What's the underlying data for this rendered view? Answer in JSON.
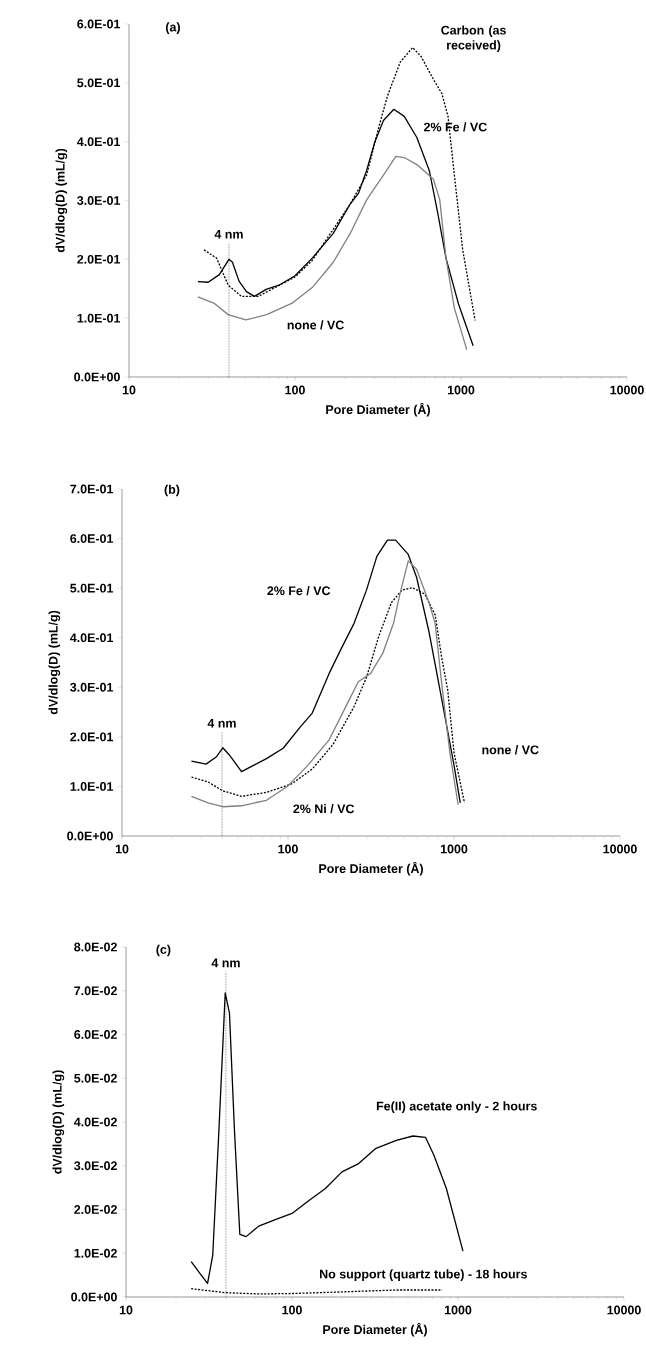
{
  "chart_data": [
    {
      "type": "line",
      "title": "(a)",
      "xlabel": "Pore Diameter (Å)",
      "ylabel": "dV/dlog(D) (mL/g)",
      "log": "x",
      "grid": false,
      "marker": "none",
      "xlim": [
        10,
        10000
      ],
      "xticks": [
        10,
        100,
        1000,
        10000
      ],
      "ylim": [
        0,
        0.6
      ],
      "yticks": [
        {
          "value": 0,
          "label": "0.0E+00"
        },
        {
          "value": 0.1,
          "label": "1.0E-01"
        },
        {
          "value": 0.2,
          "label": "2.0E-01"
        },
        {
          "value": 0.3,
          "label": "3.0E-01"
        },
        {
          "value": 0.4,
          "label": "4.0E-01"
        },
        {
          "value": 0.5,
          "label": "5.0E-01"
        },
        {
          "value": 0.6,
          "label": "6.0E-01"
        }
      ],
      "ref_lines": [
        {
          "axis": "x",
          "value": 40,
          "label": "4 nm",
          "line_style": "dotted",
          "color": "#000000"
        }
      ],
      "series": [
        {
          "name": "Carbon (as received)",
          "color": "#000000",
          "line_style": "dashed",
          "x": [
            28.3,
            33.7,
            39.6,
            47.6,
            60.1,
            75.7,
            100,
            127,
            170,
            215,
            270,
            322,
            361,
            430,
            511,
            574,
            682,
            766,
            835,
            912,
            1024,
            1216
          ],
          "values": [
            0.216,
            0.202,
            0.156,
            0.137,
            0.137,
            0.152,
            0.17,
            0.198,
            0.251,
            0.294,
            0.343,
            0.428,
            0.478,
            0.535,
            0.56,
            0.545,
            0.506,
            0.482,
            0.443,
            0.343,
            0.216,
            0.096
          ]
        },
        {
          "name": "2% Fe / VC",
          "color": "#000000",
          "line_style": "solid",
          "x": [
            26,
            30,
            35,
            40,
            42,
            46,
            51,
            57,
            67,
            80,
            100,
            127,
            170,
            215,
            241,
            270,
            303,
            341,
            394,
            455,
            542,
            644,
            723,
            812,
            966,
            1183
          ],
          "values": [
            0.162,
            0.161,
            0.174,
            0.2,
            0.195,
            0.163,
            0.145,
            0.137,
            0.149,
            0.156,
            0.172,
            0.202,
            0.244,
            0.294,
            0.312,
            0.351,
            0.4,
            0.436,
            0.455,
            0.443,
            0.407,
            0.351,
            0.28,
            0.202,
            0.124,
            0.053
          ]
        },
        {
          "name": "none / VC",
          "color": "#808080",
          "line_style": "solid",
          "x": [
            26,
            32.7,
            39.6,
            50.6,
            67.5,
            95.5,
            127,
            170,
            215,
            270,
            341,
            405,
            455,
            542,
            682,
            745,
            812,
            912,
            1084
          ],
          "values": [
            0.136,
            0.125,
            0.106,
            0.097,
            0.106,
            0.125,
            0.152,
            0.195,
            0.244,
            0.301,
            0.343,
            0.375,
            0.373,
            0.361,
            0.336,
            0.301,
            0.202,
            0.117,
            0.046
          ]
        }
      ]
    },
    {
      "type": "line",
      "title": "(b)",
      "xlabel": "Pore Diameter (Å)",
      "ylabel": "dV/dlog(D) (mL/g)",
      "log": "x",
      "grid": false,
      "marker": "none",
      "xlim": [
        10,
        10000
      ],
      "xticks": [
        10,
        100,
        1000,
        10000
      ],
      "ylim": [
        0,
        0.7
      ],
      "yticks": [
        {
          "value": 0,
          "label": "0.0E+00"
        },
        {
          "value": 0.1,
          "label": "1.0E-01"
        },
        {
          "value": 0.2,
          "label": "2.0E-01"
        },
        {
          "value": 0.3,
          "label": "3.0E-01"
        },
        {
          "value": 0.4,
          "label": "4.0E-01"
        },
        {
          "value": 0.5,
          "label": "5.0E-01"
        },
        {
          "value": 0.6,
          "label": "6.0E-01"
        },
        {
          "value": 0.7,
          "label": "7.0E-01"
        }
      ],
      "ref_lines": [
        {
          "axis": "x",
          "value": 40,
          "label": "4 nm",
          "line_style": "dotted",
          "color": "#000000"
        }
      ],
      "series": [
        {
          "name": "2% Fe / VC",
          "color": "#000000",
          "line_style": "solid",
          "x": [
            26.2,
            32.1,
            37.1,
            40.5,
            44.2,
            52.5,
            62.4,
            74.2,
            93.5,
            118,
            140,
            177,
            210,
            250,
            297,
            343,
            397,
            445,
            530,
            595,
            707,
            841,
            1000,
            1091
          ],
          "values": [
            0.151,
            0.145,
            0.16,
            0.178,
            0.164,
            0.13,
            0.143,
            0.156,
            0.177,
            0.219,
            0.248,
            0.328,
            0.379,
            0.429,
            0.496,
            0.564,
            0.597,
            0.597,
            0.568,
            0.522,
            0.412,
            0.278,
            0.143,
            0.067
          ]
        },
        {
          "name": "none / VC",
          "color": "#000000",
          "line_style": "dashed",
          "x": [
            26.2,
            33,
            40.5,
            52.5,
            74.2,
            105,
            140,
            187,
            250,
            297,
            353,
            420,
            486,
            561,
            667,
            770,
            841,
            917,
            1000,
            1156
          ],
          "values": [
            0.119,
            0.109,
            0.091,
            0.08,
            0.088,
            0.105,
            0.135,
            0.185,
            0.261,
            0.32,
            0.404,
            0.471,
            0.496,
            0.501,
            0.488,
            0.446,
            0.362,
            0.294,
            0.168,
            0.067
          ]
        },
        {
          "name": "2% Ni / VC",
          "color": "#808080",
          "line_style": "solid",
          "x": [
            26.2,
            33,
            40.5,
            52.5,
            74.2,
            100,
            132,
            177,
            223,
            265,
            315,
            374,
            432,
            472,
            530,
            595,
            707,
            770,
            841,
            944,
            1059
          ],
          "values": [
            0.08,
            0.067,
            0.059,
            0.061,
            0.072,
            0.101,
            0.143,
            0.194,
            0.261,
            0.311,
            0.328,
            0.37,
            0.429,
            0.488,
            0.555,
            0.538,
            0.471,
            0.429,
            0.311,
            0.168,
            0.063
          ]
        }
      ]
    },
    {
      "type": "line",
      "title": "(c)",
      "xlabel": "Pore Diameter (Å)",
      "ylabel": "dV/dlog(D) (mL/g)",
      "log": "x",
      "grid": false,
      "marker": "none",
      "xlim": [
        10,
        10000
      ],
      "xticks": [
        10,
        100,
        1000,
        10000
      ],
      "ylim": [
        0,
        0.08
      ],
      "yticks": [
        {
          "value": 0,
          "label": "0.0E+00"
        },
        {
          "value": 0.01,
          "label": "1.0E-02"
        },
        {
          "value": 0.02,
          "label": "2.0E-02"
        },
        {
          "value": 0.03,
          "label": "3.0E-02"
        },
        {
          "value": 0.04,
          "label": "4.0E-02"
        },
        {
          "value": 0.05,
          "label": "5.0E-02"
        },
        {
          "value": 0.06,
          "label": "6.0E-02"
        },
        {
          "value": 0.07,
          "label": "7.0E-02"
        },
        {
          "value": 0.08,
          "label": "8.0E-02"
        }
      ],
      "ref_lines": [
        {
          "axis": "x",
          "value": 40,
          "label": "4 nm",
          "line_style": "dotted",
          "color": "#000000"
        }
      ],
      "series": [
        {
          "name": "Fe(II) acetate only - 2 hours",
          "color": "#000000",
          "line_style": "solid",
          "x": [
            24.7,
            28,
            31,
            33.3,
            36.3,
            39.6,
            42,
            45,
            48.5,
            52.9,
            63,
            79.3,
            100,
            126,
            159,
            200,
            252,
            318,
            425,
            535,
            637,
            714,
            851,
            1071
          ],
          "values": [
            0.0081,
            0.0053,
            0.0031,
            0.0095,
            0.0382,
            0.0695,
            0.0649,
            0.0382,
            0.0143,
            0.0138,
            0.0162,
            0.0177,
            0.0191,
            0.022,
            0.0248,
            0.0286,
            0.0305,
            0.0339,
            0.0358,
            0.0368,
            0.0365,
            0.0325,
            0.0248,
            0.0105
          ]
        },
        {
          "name": "No support (quartz tube) - 18 hours",
          "color": "#000000",
          "line_style": "dashed",
          "x": [
            24.7,
            39.6,
            63,
            100,
            178,
            425,
            803
          ],
          "values": [
            0.0019,
            0.001,
            0.0007,
            0.0008,
            0.0011,
            0.0016,
            0.0016
          ]
        }
      ]
    }
  ]
}
